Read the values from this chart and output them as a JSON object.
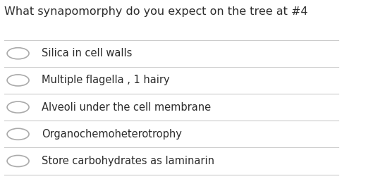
{
  "title": "What synapomorphy do you expect on the tree at #4",
  "options": [
    "Silica in cell walls",
    "Multiple flagella , 1 hairy",
    "Alveoli under the cell membrane",
    "Organochemoheterotrophy",
    "Store carbohydrates as laminarin"
  ],
  "bg_color": "#ffffff",
  "text_color": "#2c2c2c",
  "title_fontsize": 11.5,
  "option_fontsize": 10.5,
  "line_color": "#cccccc",
  "circle_color": "#aaaaaa",
  "fig_width": 5.19,
  "fig_height": 2.54
}
